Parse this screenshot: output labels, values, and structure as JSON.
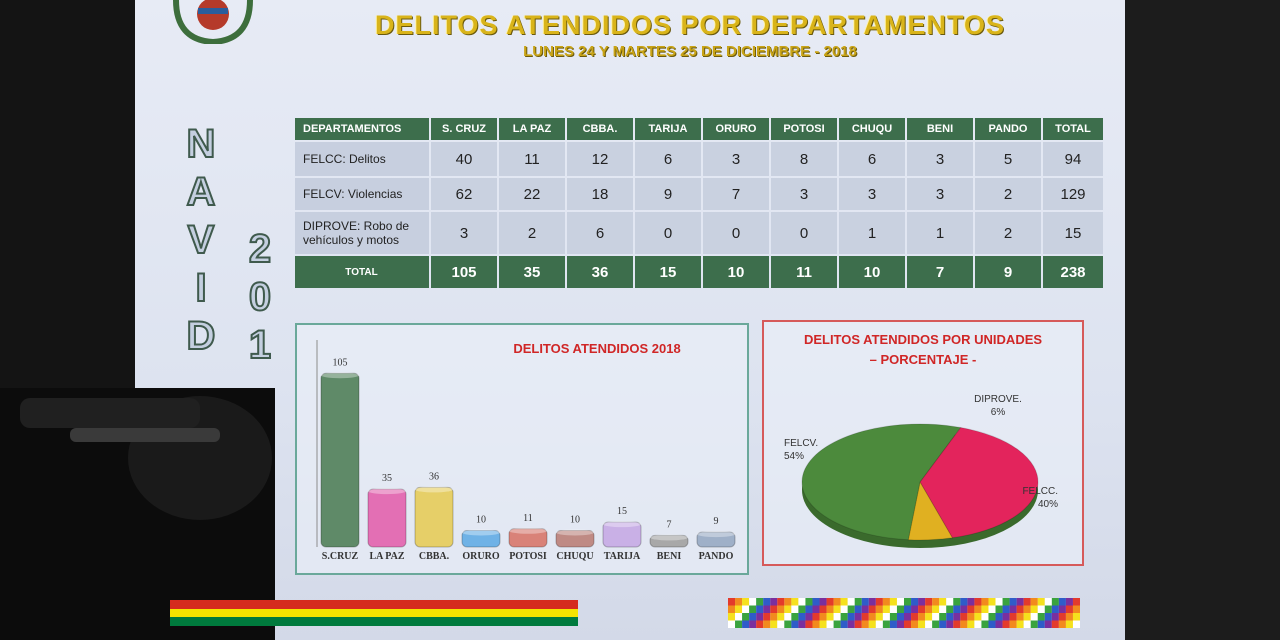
{
  "header": {
    "title": "DELITOS  ATENDIDOS POR DEPARTAMENTOS",
    "subtitle": "LUNES 24 Y MARTES 25 DE DICIEMBRE - 2018"
  },
  "side_text": {
    "word": [
      "N",
      "A",
      "V",
      "I",
      "D"
    ],
    "year": [
      "2",
      "0",
      "1"
    ]
  },
  "table": {
    "headers": [
      "DEPARTAMENTOS",
      "S. CRUZ",
      "LA PAZ",
      "CBBA.",
      "TARIJA",
      "ORURO",
      "POTOSI",
      "CHUQU",
      "BENI",
      "PANDO",
      "TOTAL"
    ],
    "rows": [
      {
        "label": "FELCC: Delitos",
        "values": [
          "40",
          "11",
          "12",
          "6",
          "3",
          "8",
          "6",
          "3",
          "5",
          "94"
        ]
      },
      {
        "label": "FELCV: Violencias",
        "values": [
          "62",
          "22",
          "18",
          "9",
          "7",
          "3",
          "3",
          "3",
          "2",
          "129"
        ]
      },
      {
        "label_line1": "DIPROVE:  Robo de",
        "label_line2": "vehículos  y  motos",
        "values": [
          "3",
          "2",
          "6",
          "0",
          "0",
          "0",
          "1",
          "1",
          "2",
          "15"
        ]
      }
    ],
    "total": {
      "label": "TOTAL",
      "values": [
        "105",
        "35",
        "36",
        "15",
        "10",
        "11",
        "10",
        "7",
        "9",
        "238"
      ]
    }
  },
  "chart_data": [
    {
      "type": "bar",
      "title": "DELITOS ATENDIDOS 2018",
      "categories": [
        "S.CRUZ",
        "LA PAZ",
        "CBBA.",
        "ORURO",
        "POTOSI",
        "CHUQU",
        "TARIJA",
        "BENI",
        "PANDO"
      ],
      "values": [
        105,
        35,
        36,
        10,
        11,
        10,
        15,
        7,
        9
      ],
      "colors": [
        "#5f8a68",
        "#e36fb4",
        "#e6cf68",
        "#6fb2e6",
        "#d98278",
        "#bf8a84",
        "#c9b0e6",
        "#a8a8a8",
        "#9fb0c8"
      ],
      "ylim": [
        0,
        110
      ],
      "xlabel": "",
      "ylabel": ""
    },
    {
      "type": "pie",
      "title_line1": "DELITOS ATENDIDOS POR UNIDADES",
      "title_line2": "– PORCENTAJE -",
      "slices": [
        {
          "name": "FELCV.",
          "value": 54,
          "label": "54%",
          "color": "#4c8a3c"
        },
        {
          "name": "FELCC.",
          "value": 40,
          "label": "40%",
          "color": "#e3245c"
        },
        {
          "name": "DIPROVE.",
          "value": 6,
          "label": "6%",
          "color": "#e0b021"
        }
      ]
    }
  ]
}
